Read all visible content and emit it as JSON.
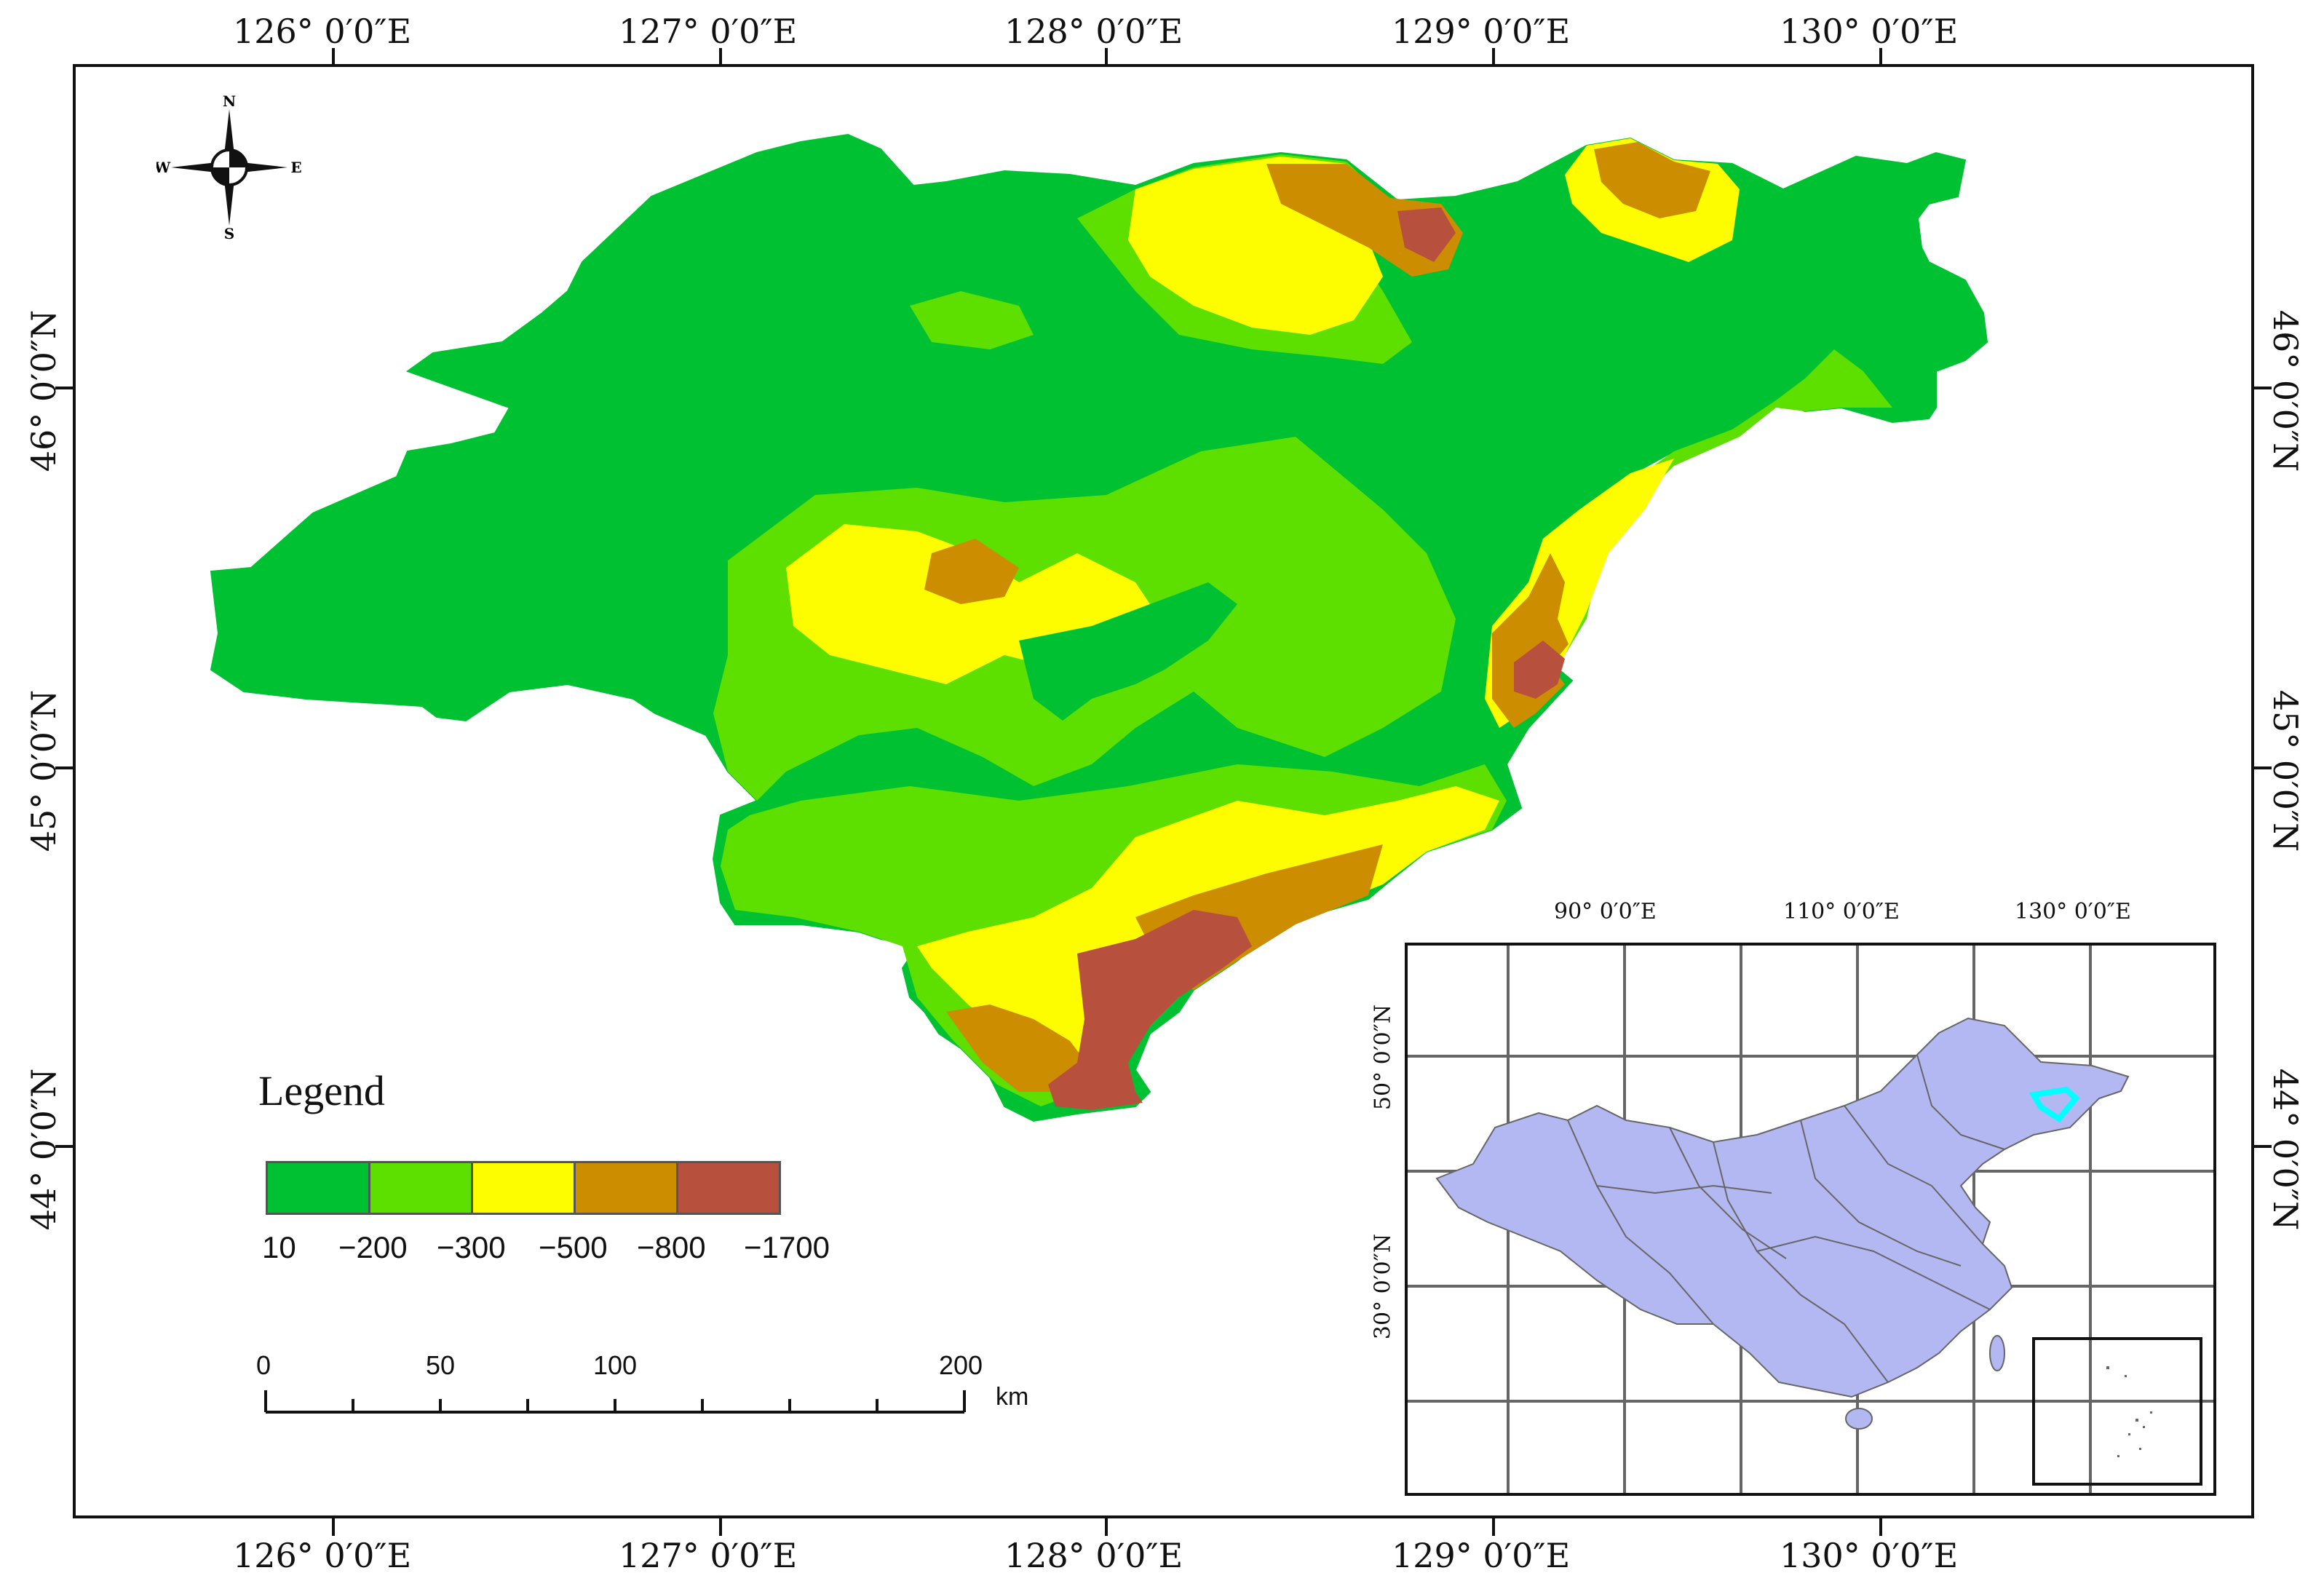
{
  "map": {
    "x_labels": [
      "126° 0′0″E",
      "127° 0′0″E",
      "128° 0′0″E",
      "129° 0′0″E",
      "130° 0′0″E"
    ],
    "y_labels": [
      "46° 0′0″N",
      "45° 0′0″N",
      "44° 0′0″N"
    ],
    "region_colors": {
      "class1": "#00c132",
      "class2": "#5ddf00",
      "class3": "#fdfd00",
      "class4": "#cc8d00",
      "class5": "#b8503e"
    }
  },
  "compass": {
    "n": "N",
    "s": "S",
    "e": "E",
    "w": "W"
  },
  "legend": {
    "title": "Legend",
    "classes": [
      {
        "color": "#00c132"
      },
      {
        "color": "#5ddf00"
      },
      {
        "color": "#fdfd00"
      },
      {
        "color": "#cc8d00"
      },
      {
        "color": "#b8503e"
      }
    ],
    "values": [
      "10",
      "−200",
      "−300",
      "−500",
      "−800",
      "−1700"
    ]
  },
  "scalebar": {
    "labels": [
      "0",
      "50",
      "100",
      "200"
    ],
    "unit": "km"
  },
  "inset": {
    "x_labels": [
      "90° 0′0″E",
      "110° 0′0″E",
      "130° 0′0″E"
    ],
    "y_labels": [
      "50° 0′0″N",
      "30° 0′0″N"
    ],
    "fill_color": "#b3b8f3",
    "highlight_color": "#00ffff"
  }
}
